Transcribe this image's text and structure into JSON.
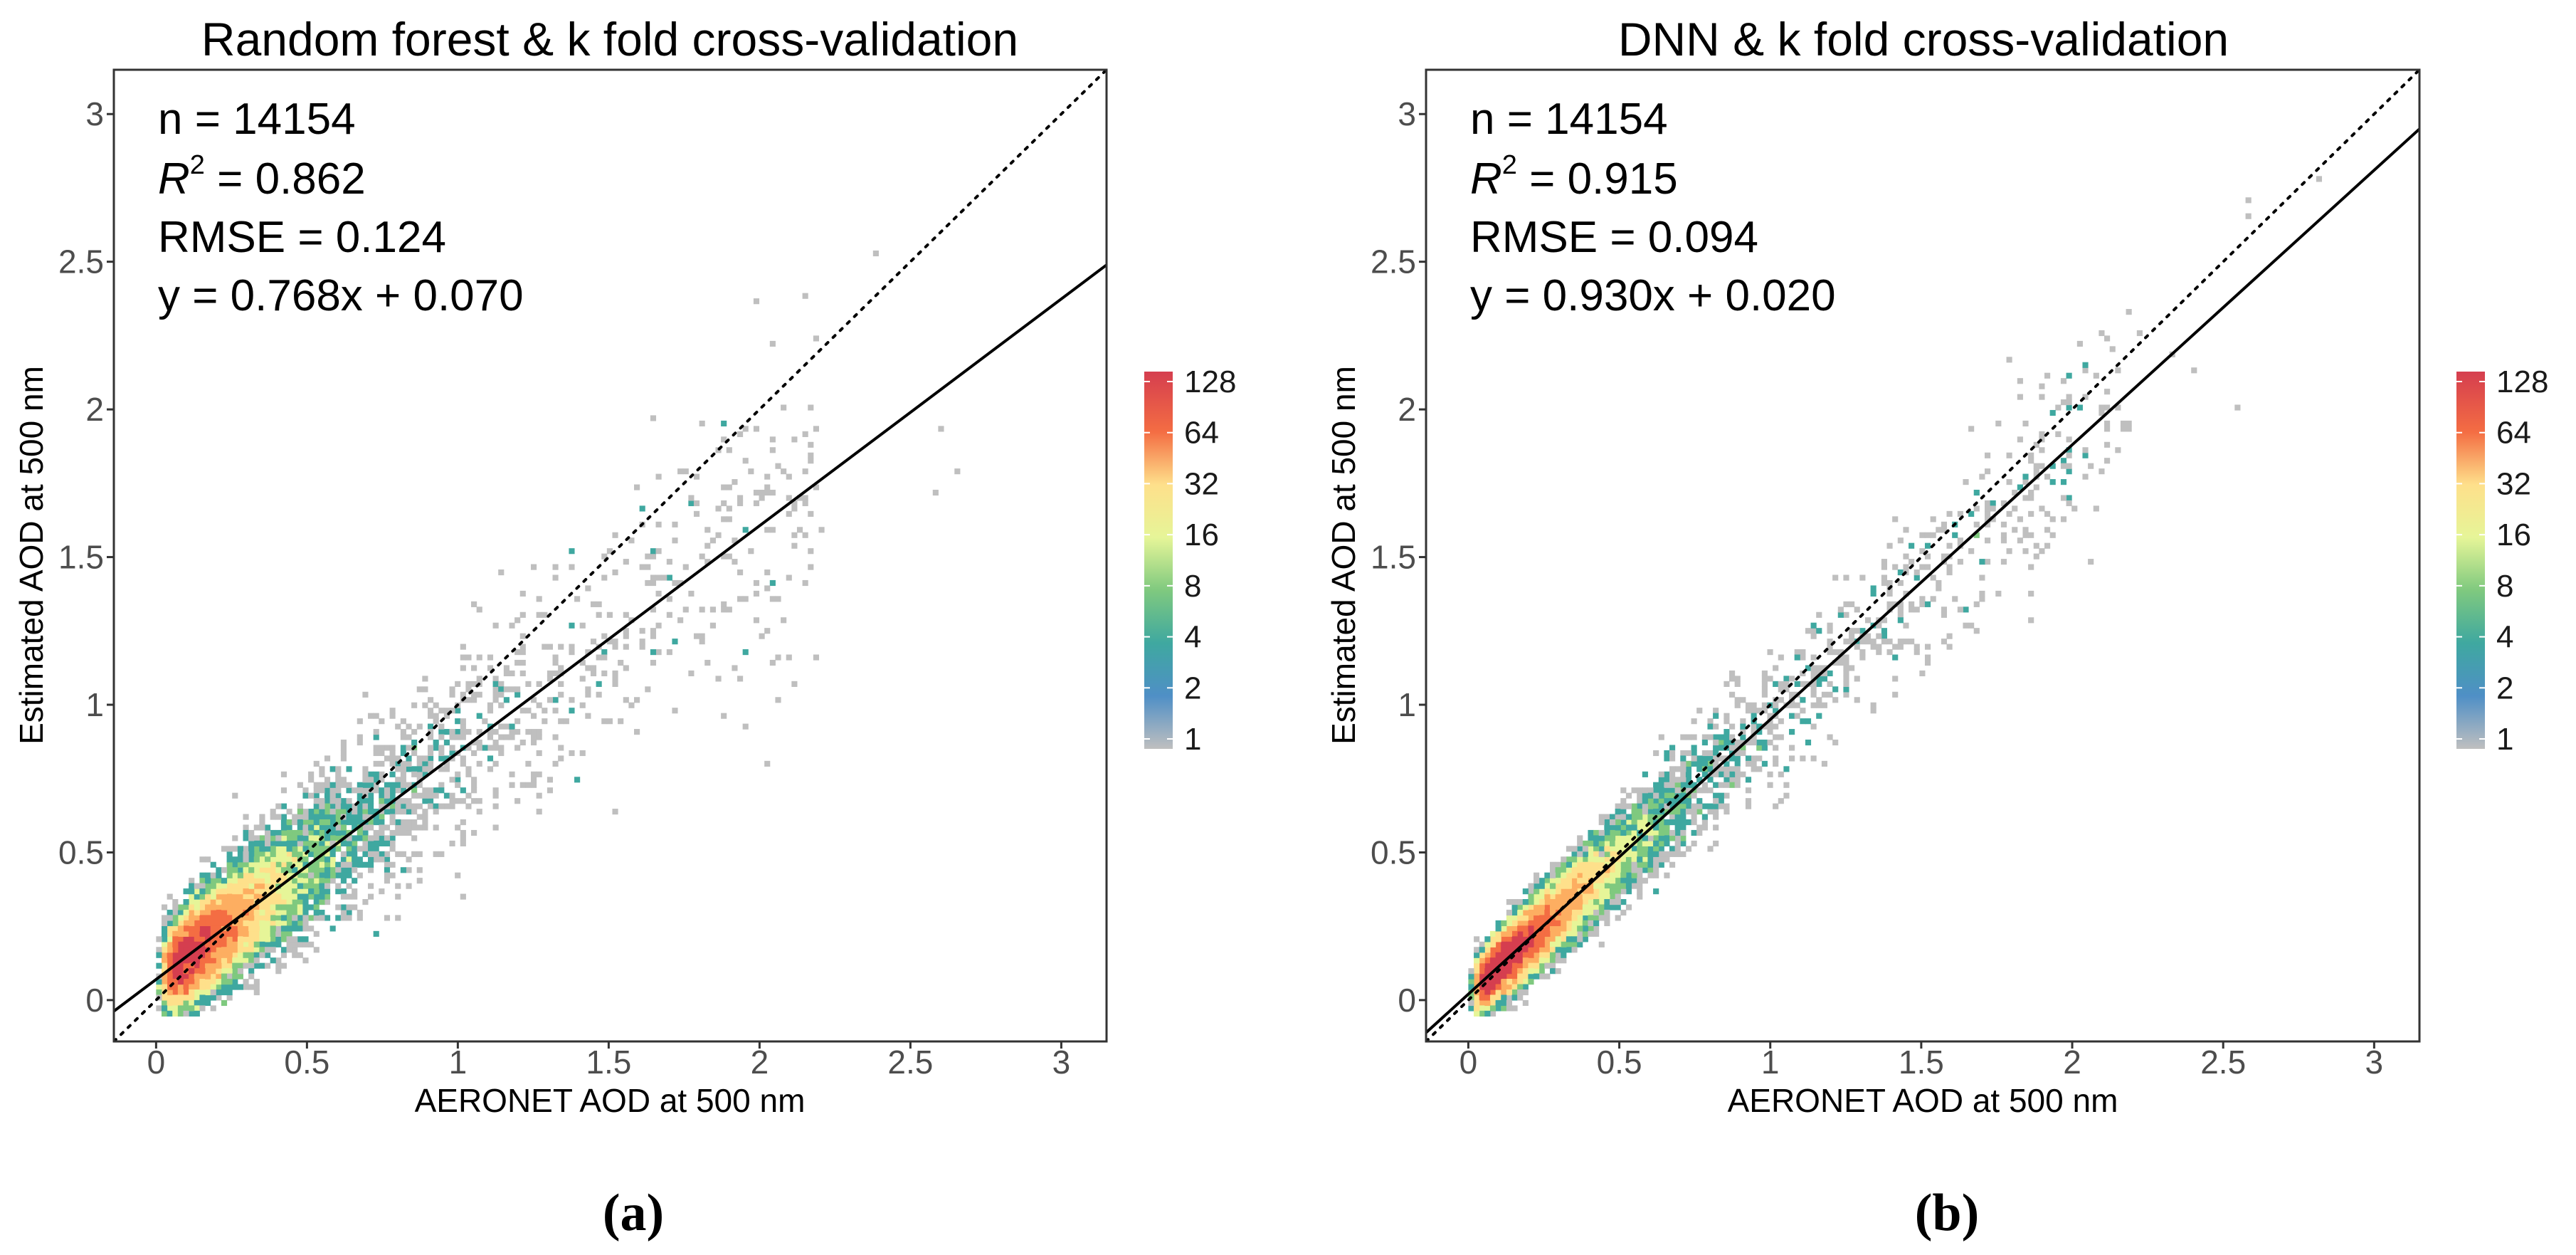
{
  "chart_data": [
    {
      "type": "heatmap",
      "title": "Random forest & k fold cross-validation",
      "xlabel": "AERONET AOD at 500 nm",
      "ylabel": "Estimated AOD at 500 nm",
      "xlim": [
        -0.14,
        3.15
      ],
      "ylim": [
        -0.14,
        3.15
      ],
      "xticks": [
        0,
        0.5,
        1,
        1.5,
        2,
        2.5,
        3
      ],
      "yticks": [
        0,
        0.5,
        1,
        1.5,
        2,
        2.5,
        3
      ],
      "xtick_labels": [
        "0",
        "0.5",
        "1",
        "1.5",
        "2",
        "2.5",
        "3"
      ],
      "ytick_labels": [
        "0",
        "0.5",
        "1",
        "1.5",
        "2",
        "2.5",
        "3"
      ],
      "stats": {
        "n_text": "n = 14154",
        "r2_symbol": "R",
        "r2_exp": "2",
        "r2_value": " = 0.862",
        "rmse_text": "RMSE = 0.124",
        "eq_text": "y = 0.768x + 0.070"
      },
      "fit": {
        "slope": 0.768,
        "intercept": 0.07
      },
      "one_to_one": true,
      "density": {
        "spread": 0.11,
        "center_shift": 0.0
      },
      "colorbar": {
        "labels": [
          "128",
          "64",
          "32",
          "16",
          "8",
          "4",
          "2",
          "1"
        ],
        "values": [
          128,
          64,
          32,
          16,
          8,
          4,
          2,
          1
        ]
      },
      "caption": "(a)"
    },
    {
      "type": "heatmap",
      "title": "DNN & k fold cross-validation",
      "xlabel": "AERONET AOD at 500 nm",
      "ylabel": "Estimated AOD at 500 nm",
      "xlim": [
        -0.14,
        3.15
      ],
      "ylim": [
        -0.14,
        3.15
      ],
      "xticks": [
        0,
        0.5,
        1,
        1.5,
        2,
        2.5,
        3
      ],
      "yticks": [
        0,
        0.5,
        1,
        1.5,
        2,
        2.5,
        3
      ],
      "xtick_labels": [
        "0",
        "0.5",
        "1",
        "1.5",
        "2",
        "2.5",
        "3"
      ],
      "ytick_labels": [
        "0",
        "0.5",
        "1",
        "1.5",
        "2",
        "2.5",
        "3"
      ],
      "stats": {
        "n_text": "n = 14154",
        "r2_symbol": "R",
        "r2_exp": "2",
        "r2_value": " = 0.915",
        "rmse_text": "RMSE = 0.094",
        "eq_text": "y = 0.930x + 0.020"
      },
      "fit": {
        "slope": 0.93,
        "intercept": 0.02
      },
      "one_to_one": true,
      "density": {
        "spread": 0.075,
        "center_shift": 0.0
      },
      "colorbar": {
        "labels": [
          "128",
          "64",
          "32",
          "16",
          "8",
          "4",
          "2",
          "1"
        ],
        "values": [
          128,
          64,
          32,
          16,
          8,
          4,
          2,
          1
        ]
      },
      "caption": "(b)"
    }
  ],
  "colors": {
    "scale": [
      "#bfbfbf",
      "#4f8fc6",
      "#3fa8a0",
      "#7fc97f",
      "#e6f598",
      "#fee08b",
      "#fdae61",
      "#f46d43",
      "#d53e4f"
    ],
    "line": "#000000",
    "axis": "#333333"
  }
}
